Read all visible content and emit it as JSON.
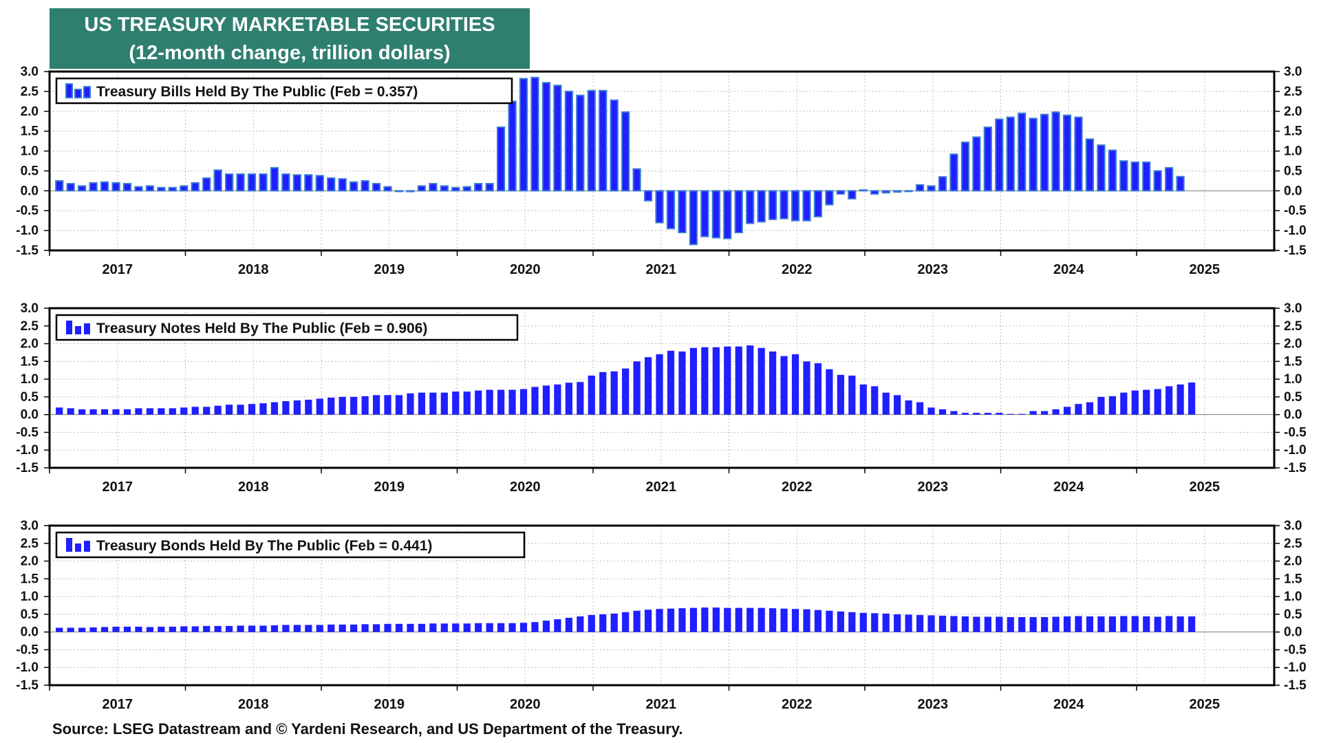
{
  "title": {
    "line1": "US TREASURY MARKETABLE SECURITIES",
    "line2": "(12-month change, trillion dollars)"
  },
  "source": "Source: LSEG Datastream and © Yardeni Research, and US Department of the Treasury.",
  "colors": {
    "title_bg": "#2e7f70",
    "bar_fill": "#1f1fff",
    "bar_edge_bills": "#3a7bd5",
    "frame": "#000000",
    "grid": "#bdbdbd"
  },
  "chart_data": [
    {
      "type": "bar",
      "title": "Treasury Bills Held By The Public (Feb = 0.357)",
      "legend": "Treasury Bills Held By The Public (Feb = 0.357)",
      "ylabel": "trillion dollars",
      "ylim": [
        -1.5,
        3.0
      ],
      "yticks": [
        "3.0",
        "2.5",
        "2.0",
        "1.5",
        "1.0",
        "0.5",
        "0.0",
        "-0.5",
        "-1.0",
        "-1.5"
      ],
      "years": [
        "2017",
        "2018",
        "2019",
        "2020",
        "2021",
        "2022",
        "2023",
        "2024",
        "2025"
      ],
      "start": "2017-01",
      "end": "2025-02",
      "values": [
        0.25,
        0.18,
        0.12,
        0.2,
        0.22,
        0.2,
        0.18,
        0.1,
        0.12,
        0.08,
        0.08,
        0.12,
        0.2,
        0.32,
        0.52,
        0.42,
        0.42,
        0.42,
        0.42,
        0.58,
        0.42,
        0.4,
        0.4,
        0.38,
        0.32,
        0.3,
        0.22,
        0.25,
        0.18,
        0.1,
        0.0,
        -0.02,
        0.12,
        0.18,
        0.12,
        0.08,
        0.1,
        0.18,
        0.18,
        1.6,
        2.25,
        2.82,
        2.85,
        2.72,
        2.65,
        2.5,
        2.4,
        2.52,
        2.52,
        2.28,
        1.98,
        0.55,
        -0.25,
        -0.8,
        -0.95,
        -1.05,
        -1.35,
        -1.15,
        -1.18,
        -1.2,
        -1.05,
        -0.82,
        -0.78,
        -0.72,
        -0.7,
        -0.75,
        -0.75,
        -0.65,
        -0.35,
        -0.08,
        -0.2,
        0.02,
        -0.08,
        -0.05,
        -0.03,
        0.0,
        0.15,
        0.12,
        0.35,
        0.92,
        1.22,
        1.35,
        1.6,
        1.8,
        1.85,
        1.95,
        1.82,
        1.92,
        1.98,
        1.9,
        1.85,
        1.3,
        1.15,
        1.02,
        0.75,
        0.72,
        0.72,
        0.5,
        0.58,
        0.357
      ]
    },
    {
      "type": "bar",
      "title": "Treasury Notes Held By The Public (Feb = 0.906)",
      "legend": "Treasury Notes Held By The Public (Feb = 0.906)",
      "ylabel": "trillion dollars",
      "ylim": [
        -1.5,
        3.0
      ],
      "yticks": [
        "3.0",
        "2.5",
        "2.0",
        "1.5",
        "1.0",
        "0.5",
        "0.0",
        "-0.5",
        "-1.0",
        "-1.5"
      ],
      "years": [
        "2017",
        "2018",
        "2019",
        "2020",
        "2021",
        "2022",
        "2023",
        "2024",
        "2025"
      ],
      "start": "2017-01",
      "end": "2025-02",
      "values": [
        0.2,
        0.18,
        0.15,
        0.15,
        0.15,
        0.15,
        0.15,
        0.18,
        0.18,
        0.18,
        0.18,
        0.2,
        0.22,
        0.22,
        0.25,
        0.28,
        0.28,
        0.3,
        0.32,
        0.35,
        0.38,
        0.4,
        0.42,
        0.45,
        0.48,
        0.5,
        0.5,
        0.52,
        0.55,
        0.55,
        0.55,
        0.6,
        0.62,
        0.62,
        0.62,
        0.65,
        0.65,
        0.68,
        0.7,
        0.7,
        0.7,
        0.72,
        0.78,
        0.82,
        0.85,
        0.9,
        0.92,
        1.1,
        1.2,
        1.22,
        1.3,
        1.5,
        1.62,
        1.7,
        1.8,
        1.78,
        1.88,
        1.9,
        1.9,
        1.92,
        1.92,
        1.95,
        1.88,
        1.78,
        1.65,
        1.7,
        1.5,
        1.45,
        1.28,
        1.12,
        1.1,
        0.85,
        0.8,
        0.62,
        0.55,
        0.4,
        0.35,
        0.2,
        0.15,
        0.1,
        0.05,
        0.05,
        0.05,
        0.05,
        0.02,
        0.02,
        0.1,
        0.1,
        0.15,
        0.22,
        0.3,
        0.35,
        0.5,
        0.52,
        0.62,
        0.68,
        0.7,
        0.72,
        0.8,
        0.85,
        0.906
      ]
    },
    {
      "type": "bar",
      "title": "Treasury Bonds Held By The Public (Feb = 0.441)",
      "legend": "Treasury Bonds Held By The Public (Feb = 0.441)",
      "ylabel": "trillion dollars",
      "ylim": [
        -1.5,
        3.0
      ],
      "yticks": [
        "3.0",
        "2.5",
        "2.0",
        "1.5",
        "1.0",
        "0.5",
        "0.0",
        "-0.5",
        "-1.0",
        "-1.5"
      ],
      "years": [
        "2017",
        "2018",
        "2019",
        "2020",
        "2021",
        "2022",
        "2023",
        "2024",
        "2025"
      ],
      "start": "2017-01",
      "end": "2025-02",
      "values": [
        0.12,
        0.12,
        0.12,
        0.13,
        0.14,
        0.15,
        0.15,
        0.15,
        0.14,
        0.15,
        0.15,
        0.16,
        0.16,
        0.17,
        0.17,
        0.17,
        0.18,
        0.18,
        0.18,
        0.19,
        0.2,
        0.2,
        0.2,
        0.2,
        0.21,
        0.21,
        0.21,
        0.22,
        0.22,
        0.23,
        0.23,
        0.23,
        0.23,
        0.24,
        0.24,
        0.24,
        0.24,
        0.25,
        0.25,
        0.25,
        0.25,
        0.26,
        0.28,
        0.32,
        0.36,
        0.4,
        0.44,
        0.48,
        0.5,
        0.52,
        0.56,
        0.6,
        0.63,
        0.65,
        0.66,
        0.67,
        0.68,
        0.69,
        0.69,
        0.68,
        0.68,
        0.68,
        0.68,
        0.67,
        0.66,
        0.65,
        0.64,
        0.62,
        0.6,
        0.58,
        0.56,
        0.54,
        0.53,
        0.52,
        0.5,
        0.49,
        0.48,
        0.47,
        0.46,
        0.45,
        0.44,
        0.43,
        0.43,
        0.43,
        0.42,
        0.42,
        0.42,
        0.42,
        0.43,
        0.44,
        0.45,
        0.44,
        0.44,
        0.44,
        0.45,
        0.45,
        0.44,
        0.43,
        0.45,
        0.44,
        0.441
      ]
    }
  ]
}
